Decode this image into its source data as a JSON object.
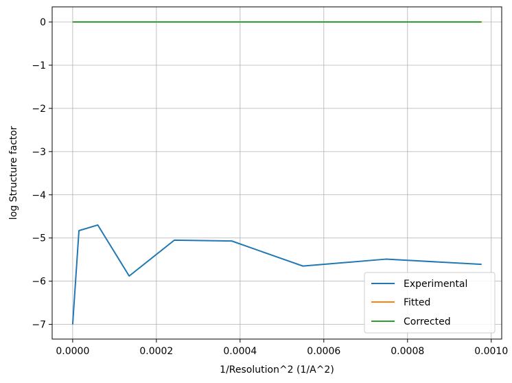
{
  "chart_data": {
    "type": "line",
    "title": "",
    "xlabel": "1/Resolution^2 (1/A^2)",
    "ylabel": "log Structure factor",
    "xlim": [
      -4.9e-05,
      0.001025
    ],
    "ylim": [
      -7.34,
      0.35
    ],
    "x_ticks": [
      0.0,
      0.0002,
      0.0004,
      0.0006,
      0.0008,
      0.001
    ],
    "x_tick_labels": [
      "0.0000",
      "0.0002",
      "0.0004",
      "0.0006",
      "0.0008",
      "0.0010"
    ],
    "y_ticks": [
      0,
      -1,
      -2,
      -3,
      -4,
      -5,
      -6,
      -7
    ],
    "y_tick_labels": [
      "0",
      "−1",
      "−2",
      "−3",
      "−4",
      "−5",
      "−6",
      "−7"
    ],
    "grid": true,
    "legend_position": "lower-right",
    "series": [
      {
        "name": "Experimental",
        "color": "#1f77b4",
        "x": [
          0.0,
          1.5e-05,
          6e-05,
          0.000135,
          0.000243,
          0.00038,
          0.00055,
          0.000748,
          0.000977
        ],
        "y": [
          -7.0,
          -4.83,
          -4.7,
          -5.88,
          -5.05,
          -5.07,
          -5.65,
          -5.49,
          -5.61
        ]
      },
      {
        "name": "Fitted",
        "color": "#ff7f0e",
        "x": [
          0.0,
          0.000977
        ],
        "y": [
          0.0,
          0.0
        ]
      },
      {
        "name": "Corrected",
        "color": "#2ca02c",
        "x": [
          0.0,
          0.000977
        ],
        "y": [
          0.0,
          0.0
        ]
      }
    ]
  }
}
